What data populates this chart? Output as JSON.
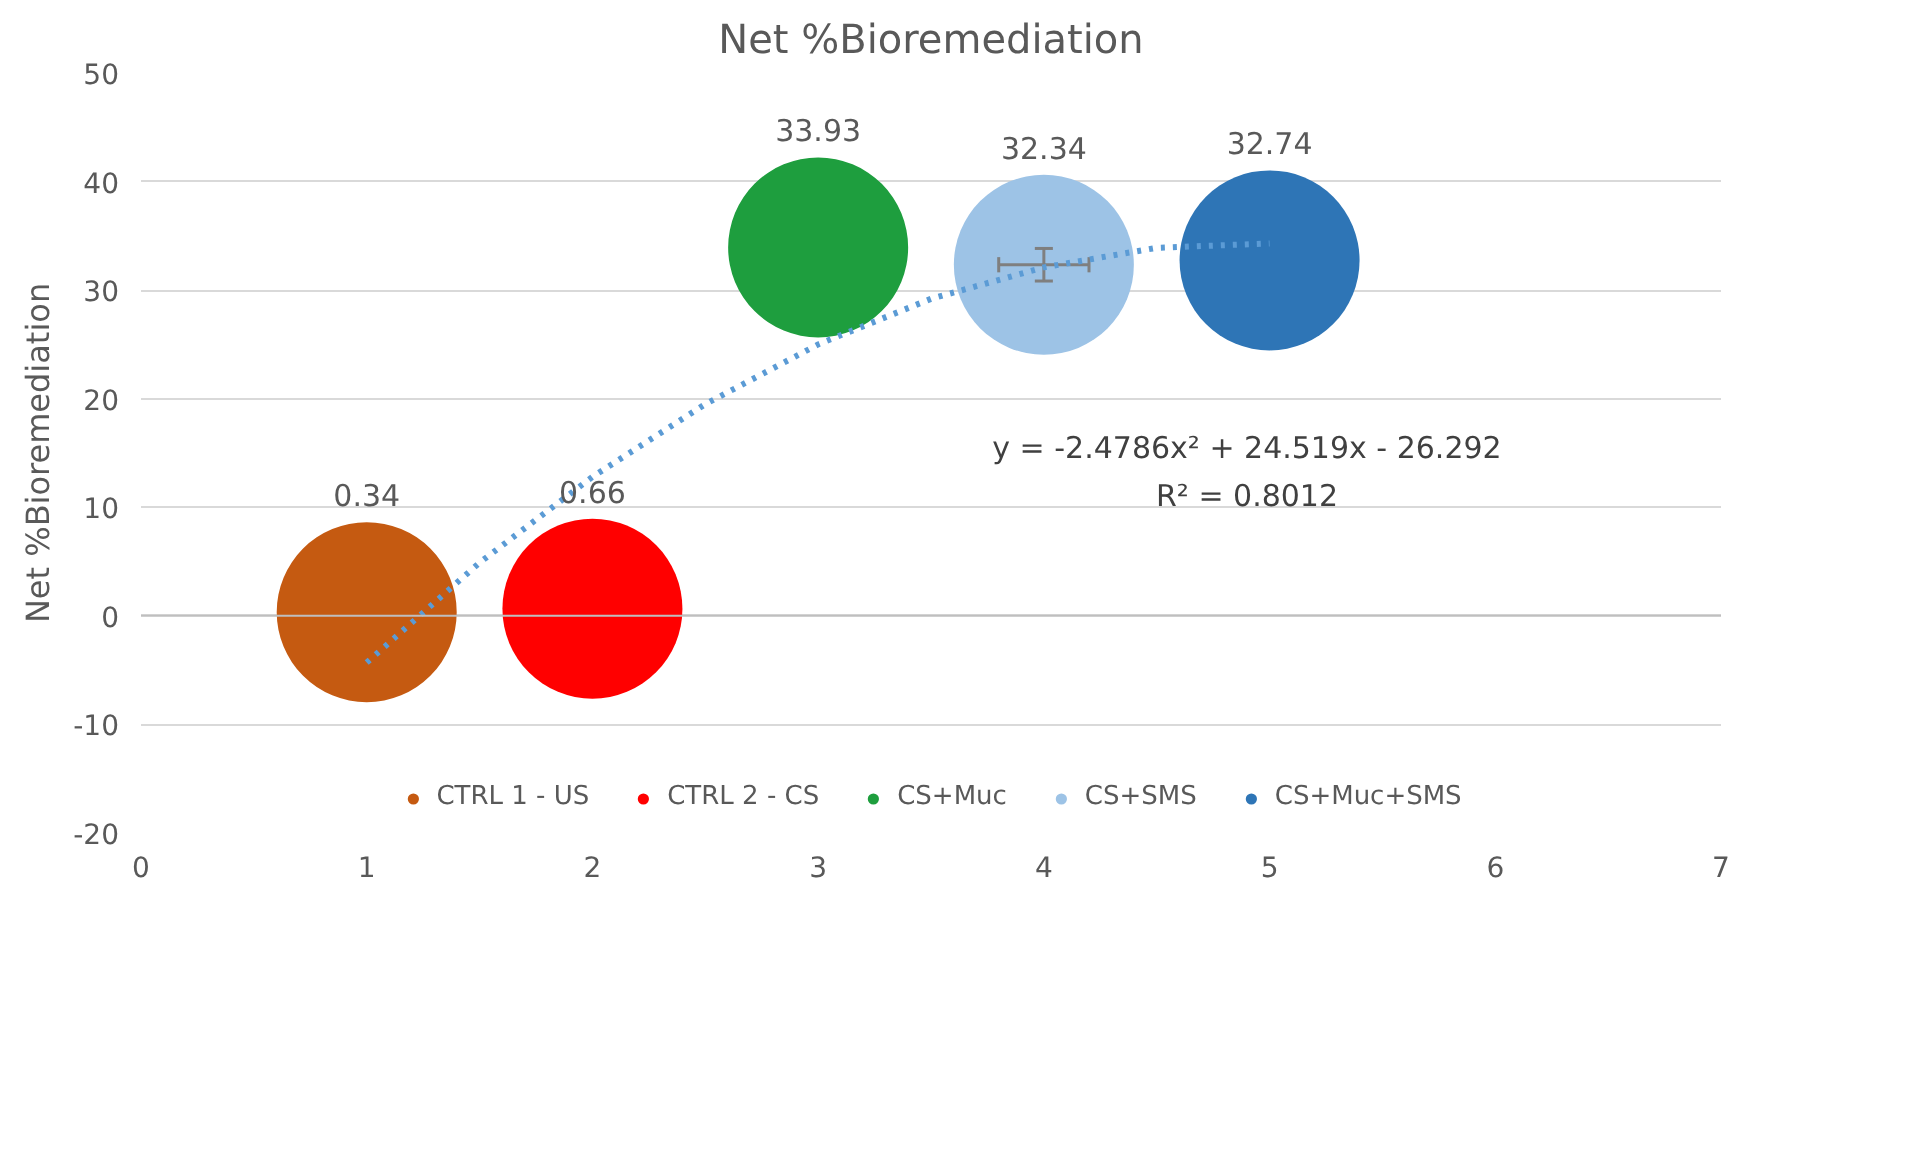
{
  "chart_data": {
    "type": "bubble",
    "title": "Net %Bioremediation",
    "ylabel": "Net %Bioremediation",
    "xlim": [
      0,
      7
    ],
    "xticks": [
      0,
      1,
      2,
      3,
      4,
      5,
      6,
      7
    ],
    "ylim": [
      -20,
      50
    ],
    "yticks": [
      -20,
      -10,
      0,
      10,
      20,
      30,
      40,
      50
    ],
    "grid": "y",
    "legend": "bottom",
    "marker": "circle",
    "series": [
      {
        "name": "CTRL 1 - US",
        "color": "#c55a11",
        "x": [
          1
        ],
        "values": [
          0.34
        ],
        "value_labels": [
          "0.34"
        ],
        "sizes": [
          1
        ]
      },
      {
        "name": "CTRL 2 - CS",
        "color": "#ff0000",
        "x": [
          2
        ],
        "values": [
          0.66
        ],
        "value_labels": [
          "0.66"
        ],
        "sizes": [
          1
        ]
      },
      {
        "name": "CS+Muc",
        "color": "#1e9e3e",
        "x": [
          3
        ],
        "values": [
          33.93
        ],
        "value_labels": [
          "33.93"
        ],
        "sizes": [
          1
        ]
      },
      {
        "name": "CS+SMS",
        "color": "#9dc3e6",
        "x": [
          4
        ],
        "values": [
          32.34
        ],
        "value_labels": [
          "32.34"
        ],
        "sizes": [
          1
        ],
        "errors": [
          1.5
        ],
        "xerrors": [
          0.2
        ]
      },
      {
        "name": "CS+Muc+SMS",
        "color": "#2e75b6",
        "x": [
          5
        ],
        "values": [
          32.74
        ],
        "value_labels": [
          "32.74"
        ],
        "sizes": [
          1
        ]
      },
      {
        "type": "line",
        "line_style": "dotted",
        "marker": "none",
        "color": "#5b9bd5",
        "x": [
          1,
          1.5,
          2,
          2.5,
          3,
          3.5,
          4,
          4.5,
          5
        ],
        "values": [
          -4.3,
          4.9,
          12.8,
          19.5,
          25.0,
          29.2,
          32.1,
          33.9,
          34.3
        ]
      }
    ],
    "annotations": [
      "y = -2.4786x² + 24.519x - 26.292",
      "R² = 0.8012"
    ]
  }
}
